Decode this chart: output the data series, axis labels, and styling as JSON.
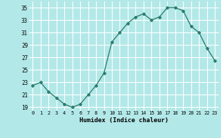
{
  "x": [
    0,
    1,
    2,
    3,
    4,
    5,
    6,
    7,
    8,
    9,
    10,
    11,
    12,
    13,
    14,
    15,
    16,
    17,
    18,
    19,
    20,
    21,
    22,
    23
  ],
  "y": [
    22.5,
    23.0,
    21.5,
    20.5,
    19.5,
    19.0,
    19.5,
    21.0,
    22.5,
    24.5,
    29.5,
    31.0,
    32.5,
    33.5,
    34.0,
    33.0,
    33.5,
    35.0,
    35.0,
    34.5,
    32.0,
    31.0,
    28.5,
    26.5
  ],
  "line_color": "#2d7d6e",
  "marker": "D",
  "marker_size": 2,
  "xlabel": "Humidex (Indice chaleur)",
  "bg_color": "#b3e8e8",
  "grid_color": "#ffffff",
  "yticks": [
    19,
    21,
    23,
    25,
    27,
    29,
    31,
    33,
    35
  ],
  "ytick_labels": [
    "19",
    "21",
    "23",
    "25",
    "27",
    "29",
    "31",
    "33",
    "35"
  ],
  "xticks": [
    0,
    1,
    2,
    3,
    4,
    5,
    6,
    7,
    8,
    9,
    10,
    11,
    12,
    13,
    14,
    15,
    16,
    17,
    18,
    19,
    20,
    21,
    22,
    23
  ],
  "ylim": [
    18.5,
    36.0
  ],
  "xlim": [
    -0.5,
    23.5
  ]
}
